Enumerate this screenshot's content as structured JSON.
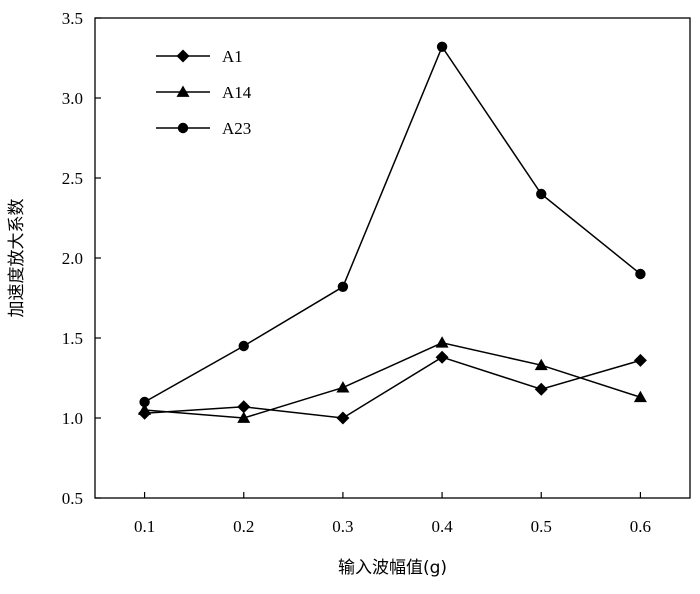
{
  "chart_data": {
    "type": "line",
    "title": "",
    "xlabel": "输入波幅值(g)",
    "ylabel": "加速度放大系数",
    "x": [
      0.1,
      0.2,
      0.3,
      0.4,
      0.5,
      0.6
    ],
    "x_tick_labels": [
      "0.1",
      "0.2",
      "0.3",
      "0.4",
      "0.5",
      "0.6"
    ],
    "xlim": [
      0.05,
      0.65
    ],
    "ylim": [
      0.5,
      3.5
    ],
    "y_ticks": [
      0.5,
      1.0,
      1.5,
      2.0,
      2.5,
      3.0,
      3.5
    ],
    "y_tick_labels": [
      "0.5",
      "1.0",
      "1.5",
      "2.0",
      "2.5",
      "3.0",
      "3.5"
    ],
    "grid": false,
    "legend_position": "top-left",
    "series": [
      {
        "name": "A1",
        "marker": "diamond",
        "values": [
          1.03,
          1.07,
          1.0,
          1.38,
          1.18,
          1.36
        ]
      },
      {
        "name": "A14",
        "marker": "triangle",
        "values": [
          1.05,
          1.0,
          1.19,
          1.47,
          1.33,
          1.13
        ]
      },
      {
        "name": "A23",
        "marker": "circle",
        "values": [
          1.1,
          1.45,
          1.82,
          3.32,
          2.4,
          1.9
        ]
      }
    ],
    "line_color": "#000000"
  }
}
